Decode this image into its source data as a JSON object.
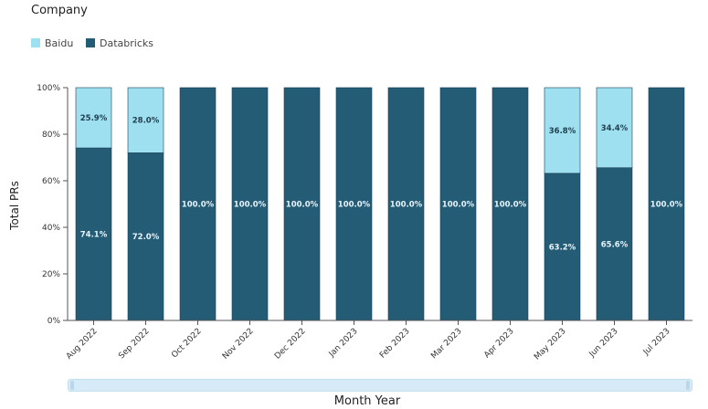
{
  "legend": {
    "title": "Company",
    "items": [
      {
        "label": "Baidu",
        "color": "#9edff0"
      },
      {
        "label": "Databricks",
        "color": "#245b75"
      }
    ]
  },
  "chart_data": {
    "type": "bar",
    "stacked": true,
    "categories": [
      "Aug 2022",
      "Sep 2022",
      "Oct 2022",
      "Nov 2022",
      "Dec 2022",
      "Jan 2023",
      "Feb 2023",
      "Mar 2023",
      "Apr 2023",
      "May 2023",
      "Jun 2023",
      "Jul 2023"
    ],
    "series": [
      {
        "name": "Databricks",
        "color": "#245b75",
        "values": [
          74.1,
          72.0,
          100.0,
          100.0,
          100.0,
          100.0,
          100.0,
          100.0,
          100.0,
          63.2,
          65.6,
          100.0
        ]
      },
      {
        "name": "Baidu",
        "color": "#9edff0",
        "values": [
          25.9,
          28.0,
          0,
          0,
          0,
          0,
          0,
          0,
          0,
          36.8,
          34.4,
          0
        ]
      }
    ],
    "xlabel": "Month Year",
    "ylabel": "Total PRs",
    "ylim": [
      0,
      100
    ],
    "yticks": [
      "0%",
      "20%",
      "40%",
      "60%",
      "80%",
      "100%"
    ],
    "grid": false,
    "legend_position": "top-left"
  }
}
